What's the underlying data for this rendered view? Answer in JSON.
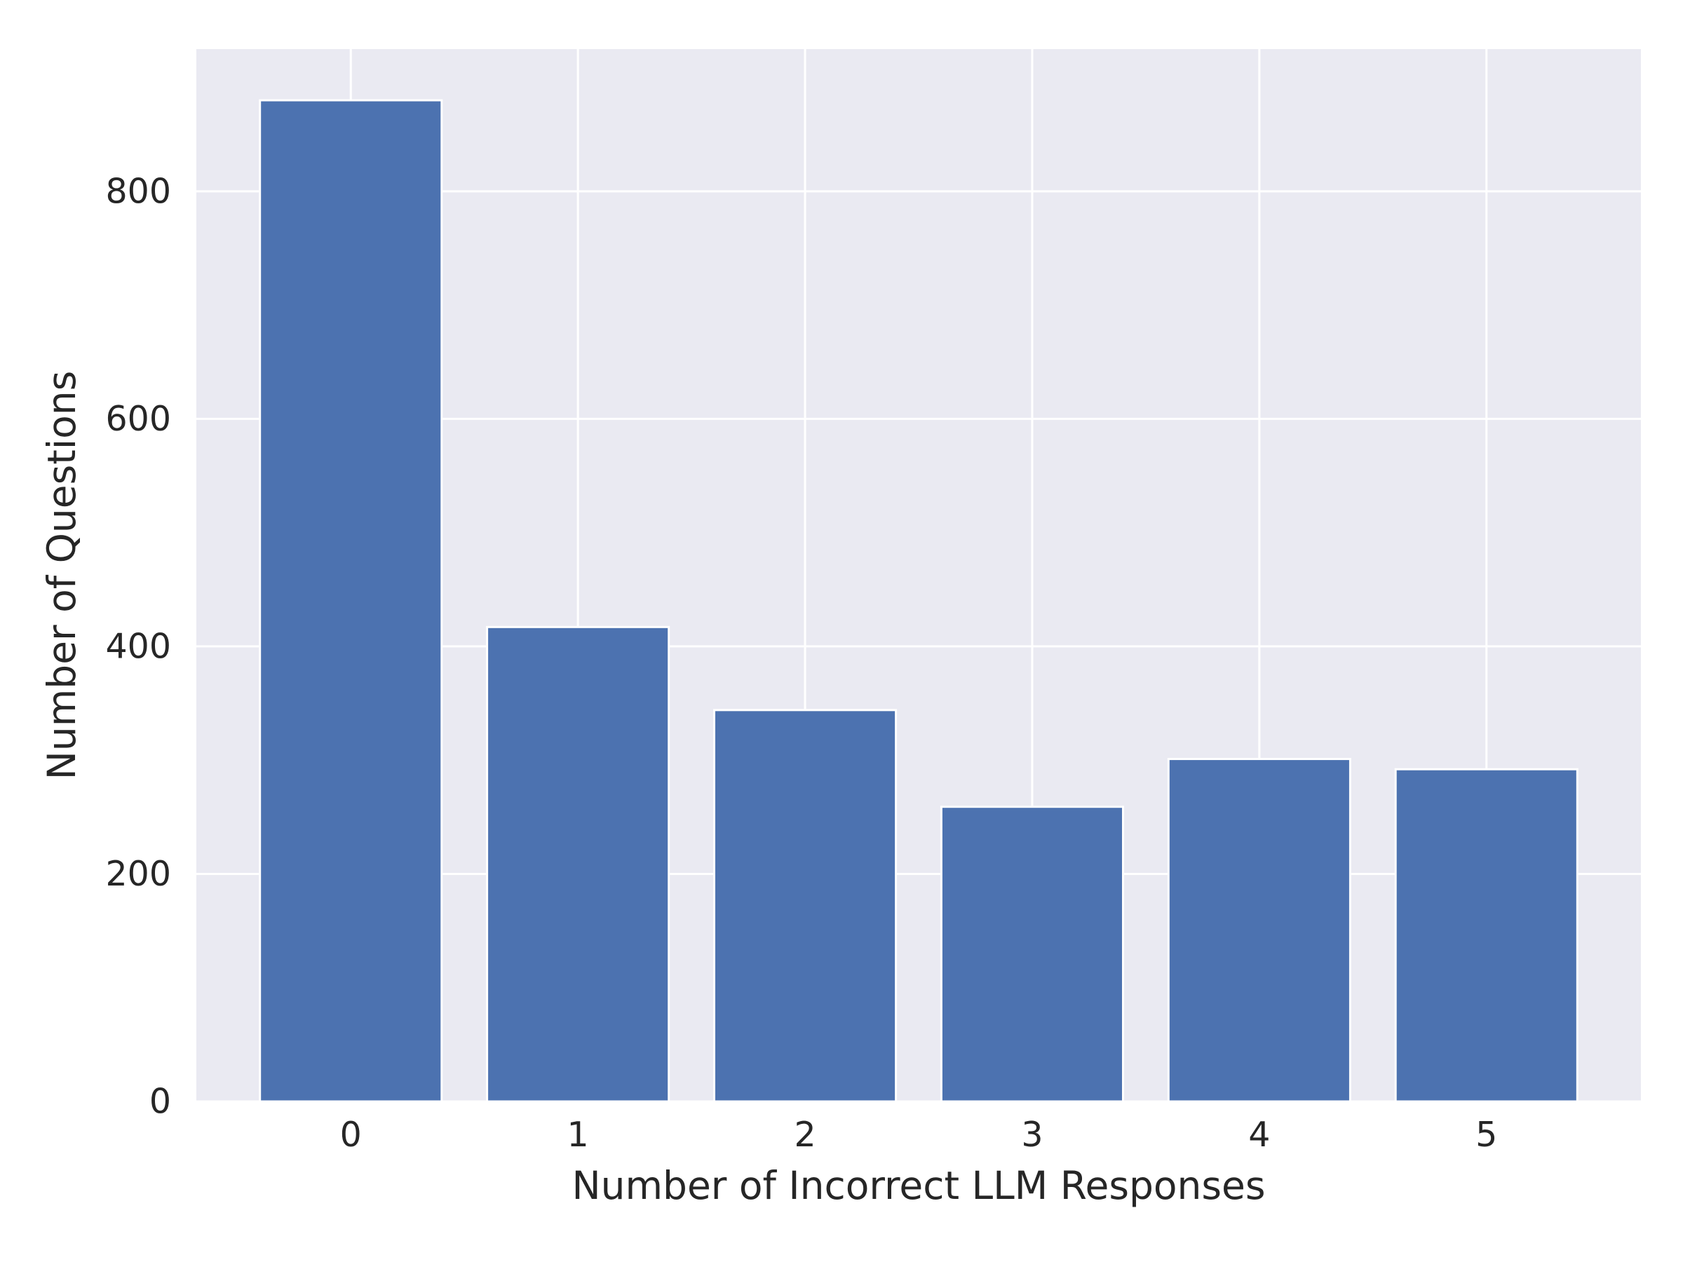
{
  "chart_data": {
    "type": "bar",
    "title": "",
    "xlabel": "Number of Incorrect LLM Responses",
    "ylabel": "Number of Questions",
    "categories": [
      "0",
      "1",
      "2",
      "3",
      "4",
      "5"
    ],
    "values": [
      880,
      417,
      344,
      259,
      301,
      292
    ],
    "ylim": [
      0,
      925
    ],
    "yticks": [
      0,
      200,
      400,
      600,
      800
    ],
    "ytick_labels": [
      "0",
      "200",
      "400",
      "600",
      "800"
    ],
    "grid": true,
    "legend": "none",
    "colors": {
      "bar": "#4c72b0",
      "plot_background": "#eaeaf2",
      "grid": "#ffffff",
      "text": "#262626"
    }
  }
}
